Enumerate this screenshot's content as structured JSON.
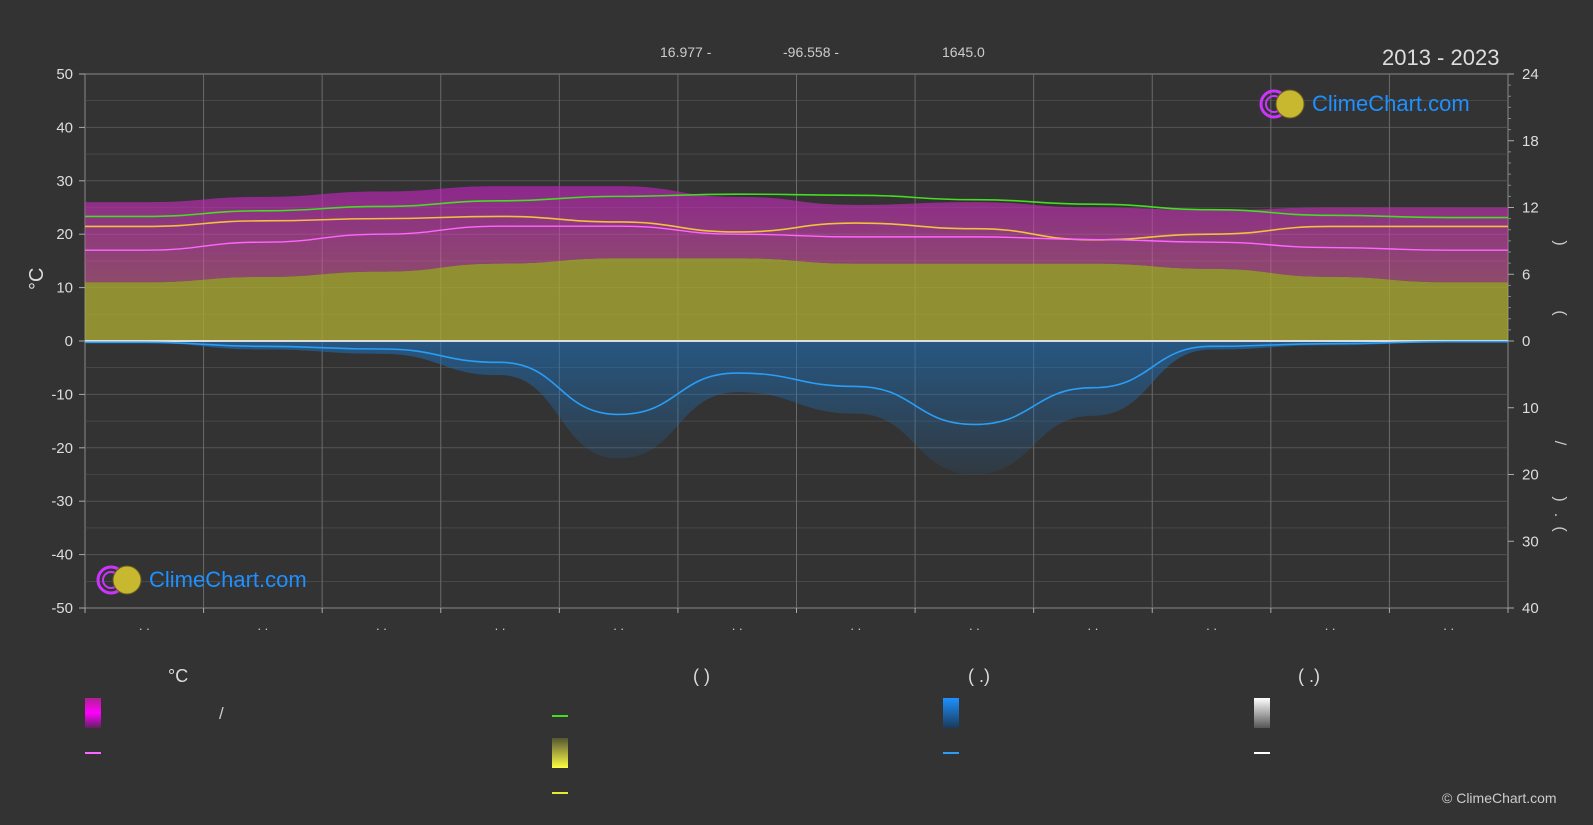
{
  "header": {
    "years": "2013 - 2023",
    "latitude": "16.977 -",
    "longitude": "-96.558 -",
    "elevation": "1645.0"
  },
  "axes": {
    "left_label": "°C",
    "left_ticks": [
      "50",
      "40",
      "30",
      "20",
      "10",
      "0",
      "-10",
      "-20",
      "-30",
      "-40",
      "-50"
    ],
    "right_ticks_top": [
      "24",
      "18",
      "12",
      "6",
      "0"
    ],
    "right_ticks_bottom": [
      "10",
      "20",
      "30",
      "40"
    ],
    "month_ticks": [
      ". .",
      ". .",
      ". .",
      ". .",
      ". .",
      ". .",
      ". .",
      ". .",
      ". .",
      ". .",
      ". .",
      ". ."
    ],
    "right_label_fragments": [
      ")",
      "(",
      "/",
      ")",
      "(",
      "."
    ]
  },
  "logos": {
    "top": "ClimeChart.com",
    "bottom": "ClimeChart.com"
  },
  "legend": {
    "col1_head": "°C",
    "col1_row1_text": "/",
    "col2_head": "(          )",
    "col3_head": "(   .)",
    "col4_head": "(   .)"
  },
  "copyright": "© ClimeChart.com",
  "colors": {
    "background": "#333333",
    "grid": "#555555",
    "temp_band": "#c020c0",
    "temp_mean": "#ff66ff",
    "daylight": "#44dd22",
    "sunshine_band": "#aaaa33",
    "sunshine_line": "#f0c040",
    "precip": "#1e7ad0",
    "precip_line": "#2a9df4"
  },
  "chart_data": {
    "type": "line",
    "title": "2013 - 2023",
    "ylim_left": [
      -50,
      50
    ],
    "ylim_right_hours": [
      0,
      24
    ],
    "ylim_right_mm": [
      0,
      40
    ],
    "x": [
      0.5,
      1.5,
      2.5,
      3.5,
      4.5,
      5.5,
      6.5,
      7.5,
      8.5,
      9.5,
      10.5,
      11.5
    ],
    "series": [
      {
        "key": "temp_max",
        "values": [
          26,
          27,
          28,
          29,
          29,
          27,
          25.5,
          26,
          25,
          24.5,
          25,
          25
        ]
      },
      {
        "key": "temp_mean",
        "values": [
          17,
          18.5,
          20,
          21.5,
          21.5,
          20,
          19.5,
          19.5,
          19,
          18.5,
          17.5,
          17
        ]
      },
      {
        "key": "temp_min",
        "values": [
          11,
          12,
          13,
          14.5,
          15.5,
          15.5,
          14.5,
          14.5,
          14.5,
          13.5,
          12,
          11
        ]
      },
      {
        "key": "daylight_hours",
        "values": [
          11.2,
          11.7,
          12.1,
          12.6,
          13.0,
          13.2,
          13.1,
          12.7,
          12.3,
          11.8,
          11.3,
          11.1
        ]
      },
      {
        "key": "sunshine_hours",
        "values": [
          10.3,
          10.8,
          11.0,
          11.2,
          10.7,
          9.8,
          10.6,
          10.1,
          9.1,
          9.6,
          10.3,
          10.3
        ]
      },
      {
        "key": "precipitation_mm",
        "values": [
          0.2,
          0.8,
          1.2,
          3.2,
          11.0,
          4.8,
          6.8,
          12.5,
          7.0,
          0.8,
          0.4,
          0.1
        ]
      }
    ]
  }
}
